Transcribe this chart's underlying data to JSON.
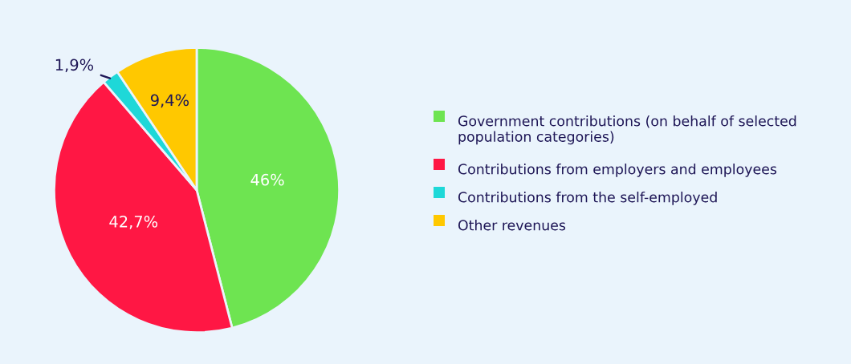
{
  "chart_data": {
    "type": "pie",
    "categories": [
      "Government contributions (on behalf of selected population categories)",
      "Contributions from employers and employees",
      "Contributions from the self-employed",
      "Other revenues"
    ],
    "values": [
      46,
      42.7,
      1.9,
      9.4
    ],
    "colors": [
      "#6ee451",
      "#ff1744",
      "#1ed8d8",
      "#ffc800"
    ],
    "value_labels": [
      "46%",
      "42,7%",
      "1,9%",
      "9,4%"
    ],
    "legend": "right"
  }
}
